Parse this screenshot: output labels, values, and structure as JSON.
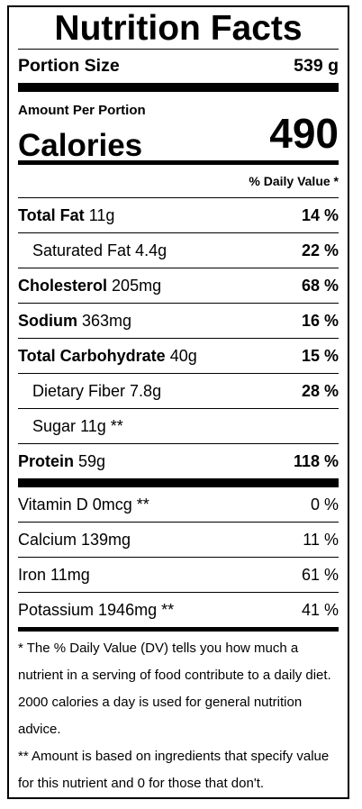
{
  "title": "Nutrition Facts",
  "portion": {
    "label": "Portion Size",
    "value": "539 g"
  },
  "amount_per_portion": "Amount Per Portion",
  "calories": {
    "label": "Calories",
    "value": "490"
  },
  "daily_value_header": "% Daily Value *",
  "nutrients": [
    {
      "name": "Total Fat",
      "amount": "11g",
      "dv": "14 %"
    },
    {
      "name": "Saturated Fat",
      "amount": "4.4g",
      "dv": "22 %"
    },
    {
      "name": "Cholesterol",
      "amount": "205mg",
      "dv": "68 %"
    },
    {
      "name": "Sodium",
      "amount": "363mg",
      "dv": "16 %"
    },
    {
      "name": "Total Carbohydrate",
      "amount": "40g",
      "dv": "15 %"
    },
    {
      "name": "Dietary Fiber",
      "amount": "7.8g",
      "dv": "28 %"
    },
    {
      "name": "Sugar",
      "amount": "11g **",
      "dv": ""
    },
    {
      "name": "Protein",
      "amount": "59g",
      "dv": "118 %"
    }
  ],
  "vitamins": [
    {
      "text": "Vitamin D 0mcg **",
      "dv": "0 %"
    },
    {
      "text": "Calcium 139mg",
      "dv": "11 %"
    },
    {
      "text": "Iron 11mg",
      "dv": "61 %"
    },
    {
      "text": "Potassium 1946mg **",
      "dv": "41 %"
    }
  ],
  "footnotes": [
    "* The % Daily Value (DV) tells you how much a nutrient in a serving of food contribute to a daily diet. 2000 calories a day is used for general nutrition advice.",
    "** Amount is based on ingredients that specify value for this nutrient and 0 for those that don't."
  ]
}
